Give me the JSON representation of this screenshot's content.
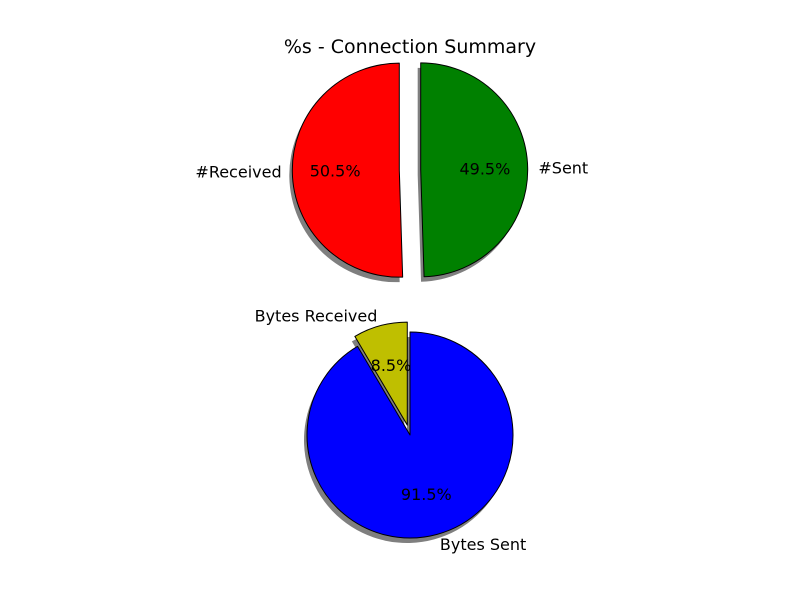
{
  "chart_title": "%s - Connection Summary",
  "chart_data": [
    {
      "type": "pie",
      "title": "%s - Connection Summary",
      "categories": [
        "#Received",
        "#Sent"
      ],
      "values": [
        50.5,
        49.5
      ],
      "percent_labels": [
        "50.5%",
        "49.5%"
      ],
      "colors": [
        "#ff0000",
        "#008000"
      ],
      "exploded": [
        true,
        true
      ],
      "shadow": true,
      "start_angle_deg": 90,
      "direction": "counterclockwise"
    },
    {
      "type": "pie",
      "title": "",
      "categories": [
        "Bytes Received",
        "Bytes Sent"
      ],
      "values": [
        8.5,
        91.5
      ],
      "percent_labels": [
        "8.5%",
        "91.5%"
      ],
      "colors": [
        "#bfbf00",
        "#0000ff"
      ],
      "exploded": [
        true,
        false
      ],
      "shadow": true,
      "start_angle_deg": 90,
      "direction": "counterclockwise"
    }
  ]
}
